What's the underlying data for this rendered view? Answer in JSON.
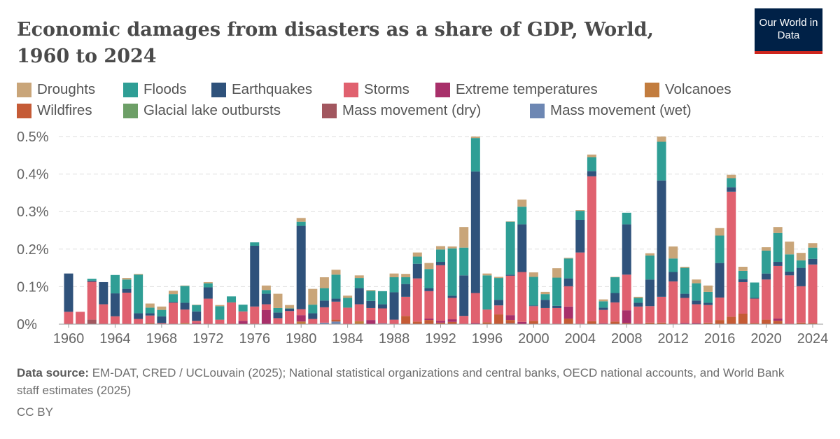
{
  "header": {
    "title": "Economic damages from disasters as a share of GDP, World, 1960 to 2024",
    "logo_text": "Our World in Data"
  },
  "footer": {
    "source_label": "Data source:",
    "source_text": "EM-DAT, CRED / UCLouvain (2025); National statistical organizations and central banks, OECD national accounts, and World Bank staff estimates (2025)",
    "license": "CC BY"
  },
  "chart_data": {
    "type": "bar",
    "stacked": true,
    "title": "Economic damages from disasters as a share of GDP, World, 1960 to 2024",
    "xlabel": "",
    "ylabel": "",
    "ylim": [
      0,
      0.5
    ],
    "y_unit": "%",
    "yticks": [
      "0%",
      "0.1%",
      "0.2%",
      "0.3%",
      "0.4%",
      "0.5%"
    ],
    "xticks": [
      "1960",
      "1964",
      "1968",
      "1972",
      "1976",
      "1980",
      "1984",
      "1988",
      "1992",
      "1996",
      "2000",
      "2004",
      "2008",
      "2012",
      "2016",
      "2020",
      "2024"
    ],
    "grid": "horizontal dashed",
    "legend_position": "top",
    "x": [
      1960,
      1961,
      1962,
      1963,
      1964,
      1965,
      1966,
      1967,
      1968,
      1969,
      1970,
      1971,
      1972,
      1973,
      1974,
      1975,
      1976,
      1977,
      1978,
      1979,
      1980,
      1981,
      1982,
      1983,
      1984,
      1985,
      1986,
      1987,
      1988,
      1989,
      1990,
      1991,
      1992,
      1993,
      1994,
      1995,
      1996,
      1997,
      1998,
      1999,
      2000,
      2001,
      2002,
      2003,
      2004,
      2005,
      2006,
      2007,
      2008,
      2009,
      2010,
      2011,
      2012,
      2013,
      2014,
      2015,
      2016,
      2017,
      2018,
      2019,
      2020,
      2021,
      2022,
      2023,
      2024
    ],
    "legend_order": [
      "Droughts",
      "Floods",
      "Earthquakes",
      "Storms",
      "Extreme temperatures",
      "Volcanoes",
      "Wildfires",
      "Glacial lake outbursts",
      "Mass movement (dry)",
      "Mass movement (wet)"
    ],
    "series": [
      {
        "name": "Mass movement (wet)",
        "color": "#6d87b3",
        "values": [
          0,
          0,
          0,
          0,
          0,
          0,
          0,
          0,
          0,
          0,
          0,
          0,
          0,
          0,
          0,
          0,
          0,
          0,
          0,
          0,
          0,
          0,
          0.004,
          0.007,
          0,
          0,
          0,
          0.002,
          0,
          0,
          0,
          0,
          0,
          0,
          0,
          0,
          0,
          0,
          0.002,
          0,
          0,
          0,
          0,
          0,
          0,
          0,
          0,
          0,
          0,
          0,
          0,
          0,
          0,
          0,
          0,
          0,
          0,
          0,
          0,
          0,
          0,
          0,
          0,
          0,
          0
        ]
      },
      {
        "name": "Mass movement (dry)",
        "color": "#a2575f",
        "values": [
          0,
          0,
          0.012,
          0,
          0,
          0,
          0,
          0,
          0,
          0,
          0,
          0,
          0,
          0,
          0,
          0,
          0,
          0,
          0,
          0,
          0,
          0,
          0,
          0,
          0,
          0,
          0,
          0,
          0,
          0,
          0,
          0,
          0,
          0,
          0,
          0,
          0,
          0,
          0,
          0,
          0,
          0,
          0,
          0,
          0,
          0,
          0,
          0,
          0,
          0,
          0,
          0,
          0,
          0,
          0,
          0,
          0,
          0,
          0,
          0,
          0,
          0,
          0,
          0,
          0
        ]
      },
      {
        "name": "Glacial lake outbursts",
        "color": "#6d9f67",
        "values": [
          0,
          0,
          0,
          0,
          0,
          0,
          0,
          0,
          0,
          0,
          0,
          0,
          0,
          0,
          0,
          0,
          0,
          0,
          0,
          0,
          0,
          0,
          0,
          0,
          0,
          0,
          0,
          0,
          0,
          0,
          0,
          0,
          0,
          0,
          0,
          0,
          0,
          0,
          0,
          0,
          0,
          0,
          0,
          0,
          0,
          0,
          0,
          0,
          0,
          0,
          0,
          0,
          0,
          0,
          0,
          0,
          0,
          0,
          0,
          0,
          0,
          0,
          0,
          0,
          0
        ]
      },
      {
        "name": "Wildfires",
        "color": "#c55b36",
        "values": [
          0,
          0,
          0,
          0,
          0,
          0,
          0,
          0.003,
          0,
          0,
          0,
          0,
          0,
          0,
          0,
          0,
          0,
          0,
          0,
          0,
          0,
          0,
          0,
          0.005,
          0,
          0,
          0,
          0,
          0,
          0.022,
          0.007,
          0.011,
          0.004,
          0.006,
          0,
          0,
          0.005,
          0.026,
          0.009,
          0,
          0.009,
          0,
          0,
          0.015,
          0,
          0.008,
          0,
          0.007,
          0.003,
          0,
          0.004,
          0.004,
          0,
          0,
          0,
          0.004,
          0.011,
          0.02,
          0.028,
          0.003,
          0.012,
          0.009,
          0,
          0.004,
          0.003
        ]
      },
      {
        "name": "Volcanoes",
        "color": "#c27c3e",
        "values": [
          0,
          0,
          0,
          0,
          0,
          0,
          0,
          0,
          0,
          0,
          0.003,
          0,
          0,
          0,
          0,
          0,
          0,
          0,
          0,
          0,
          0.007,
          0,
          0,
          0,
          0,
          0.008,
          0,
          0,
          0,
          0,
          0,
          0,
          0,
          0,
          0,
          0,
          0,
          0,
          0,
          0,
          0,
          0,
          0,
          0,
          0,
          0,
          0,
          0,
          0,
          0,
          0,
          0,
          0,
          0,
          0,
          0,
          0,
          0,
          0,
          0,
          0,
          0,
          0,
          0,
          0
        ]
      },
      {
        "name": "Extreme temperatures",
        "color": "#a8306a",
        "values": [
          0,
          0,
          0,
          0,
          0,
          0,
          0,
          0,
          0,
          0,
          0,
          0.003,
          0,
          0,
          0,
          0.009,
          0,
          0.038,
          0,
          0,
          0.017,
          0,
          0,
          0,
          0,
          0,
          0.011,
          0,
          0,
          0,
          0,
          0.004,
          0.005,
          0.007,
          0,
          0.003,
          0,
          0,
          0.013,
          0.006,
          0,
          0,
          0,
          0.032,
          0,
          0,
          0.002,
          0,
          0.034,
          0,
          0,
          0,
          0,
          0.003,
          0.003,
          0,
          0,
          0,
          0,
          0,
          0,
          0.006,
          0,
          0,
          0
        ]
      },
      {
        "name": "Storms",
        "color": "#e0616f",
        "values": [
          0.033,
          0.033,
          0.101,
          0.053,
          0.021,
          0.084,
          0.014,
          0.02,
          0.003,
          0.057,
          0.036,
          0.006,
          0.068,
          0.012,
          0.058,
          0.025,
          0.047,
          0.015,
          0.016,
          0.035,
          0.016,
          0.014,
          0.041,
          0.048,
          0.044,
          0.045,
          0.032,
          0.04,
          0.012,
          0.051,
          0.115,
          0.073,
          0.148,
          0.057,
          0.022,
          0.08,
          0.034,
          0.024,
          0.105,
          0.133,
          0.039,
          0.043,
          0.043,
          0.054,
          0.191,
          0.386,
          0.036,
          0.051,
          0.095,
          0.047,
          0.044,
          0.069,
          0.114,
          0.067,
          0.05,
          0.047,
          0.06,
          0.333,
          0.084,
          0.065,
          0.107,
          0.14,
          0.13,
          0.097,
          0.156
        ]
      },
      {
        "name": "Earthquakes",
        "color": "#2f527b",
        "values": [
          0.102,
          0,
          0.003,
          0.059,
          0.061,
          0.01,
          0.015,
          0.006,
          0.018,
          0.002,
          0.018,
          0.025,
          0.03,
          0,
          0,
          0,
          0.162,
          0.028,
          0.015,
          0.006,
          0.222,
          0.015,
          0.018,
          0.008,
          0,
          0.043,
          0.019,
          0.011,
          0.073,
          0.034,
          0.039,
          0.008,
          0.009,
          0.006,
          0.108,
          0.324,
          0,
          0.015,
          0.003,
          0.127,
          0.002,
          0.022,
          0.006,
          0.021,
          0.087,
          0.014,
          0.006,
          0.025,
          0.134,
          0.01,
          0.071,
          0.31,
          0.025,
          0.011,
          0.01,
          0.006,
          0.092,
          0.012,
          0.008,
          0.002,
          0.016,
          0.011,
          0.01,
          0.049,
          0.015
        ]
      },
      {
        "name": "Floods",
        "color": "#2f9e95",
        "values": [
          0,
          0,
          0.005,
          0,
          0.049,
          0.025,
          0.103,
          0.015,
          0.017,
          0.021,
          0.045,
          0.017,
          0.011,
          0.036,
          0.016,
          0.018,
          0.009,
          0.01,
          0.012,
          0.001,
          0.011,
          0.023,
          0.033,
          0.064,
          0.026,
          0.027,
          0.027,
          0.035,
          0.04,
          0.018,
          0.019,
          0.051,
          0.033,
          0.126,
          0.074,
          0.089,
          0.091,
          0.058,
          0.141,
          0.047,
          0.076,
          0.015,
          0.075,
          0.053,
          0.024,
          0.037,
          0.017,
          0.042,
          0.031,
          0.013,
          0.064,
          0.103,
          0.036,
          0.069,
          0.046,
          0.029,
          0.073,
          0.024,
          0.022,
          0.041,
          0.061,
          0.077,
          0.046,
          0.02,
          0.03
        ]
      },
      {
        "name": "Droughts",
        "color": "#c9a579",
        "values": [
          0,
          0,
          0,
          0,
          0,
          0.004,
          0.002,
          0.011,
          0.009,
          0.009,
          0.001,
          0.001,
          0.003,
          0.003,
          0,
          0,
          0,
          0.012,
          0.038,
          0.009,
          0.01,
          0.042,
          0.029,
          0.013,
          0.006,
          0.007,
          0.002,
          0,
          0.01,
          0.009,
          0.011,
          0.016,
          0.009,
          0.005,
          0.055,
          0.004,
          0.005,
          0.003,
          0.001,
          0.019,
          0.012,
          0.006,
          0.025,
          0.002,
          0.002,
          0.007,
          0.005,
          0.001,
          0,
          0.003,
          0.006,
          0.014,
          0.032,
          0.003,
          0.01,
          0.017,
          0.02,
          0.009,
          0.011,
          0,
          0.009,
          0.016,
          0.034,
          0.02,
          0.012
        ]
      }
    ]
  }
}
